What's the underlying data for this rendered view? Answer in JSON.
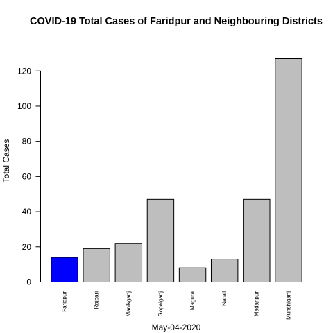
{
  "chart_data": {
    "type": "bar",
    "title": "COVID-19 Total Cases of Faridpur and Neighbouring Districts",
    "xlabel": "May-04-2020",
    "ylabel": "Total Cases",
    "categories": [
      "Faridpur",
      "Rajbari",
      "Manikganj",
      "Gopalganj",
      "Magura",
      "Narail",
      "Madaripur",
      "Munshiganj"
    ],
    "values": [
      14,
      19,
      22,
      47,
      8,
      13,
      47,
      127
    ],
    "ylim": [
      0,
      127
    ],
    "yticks": [
      0,
      20,
      40,
      60,
      80,
      100,
      120
    ],
    "grid": false,
    "highlight_category": "Faridpur",
    "colors": {
      "highlight": "#0000ff",
      "default": "#bebebe",
      "stroke": "#000000"
    }
  }
}
